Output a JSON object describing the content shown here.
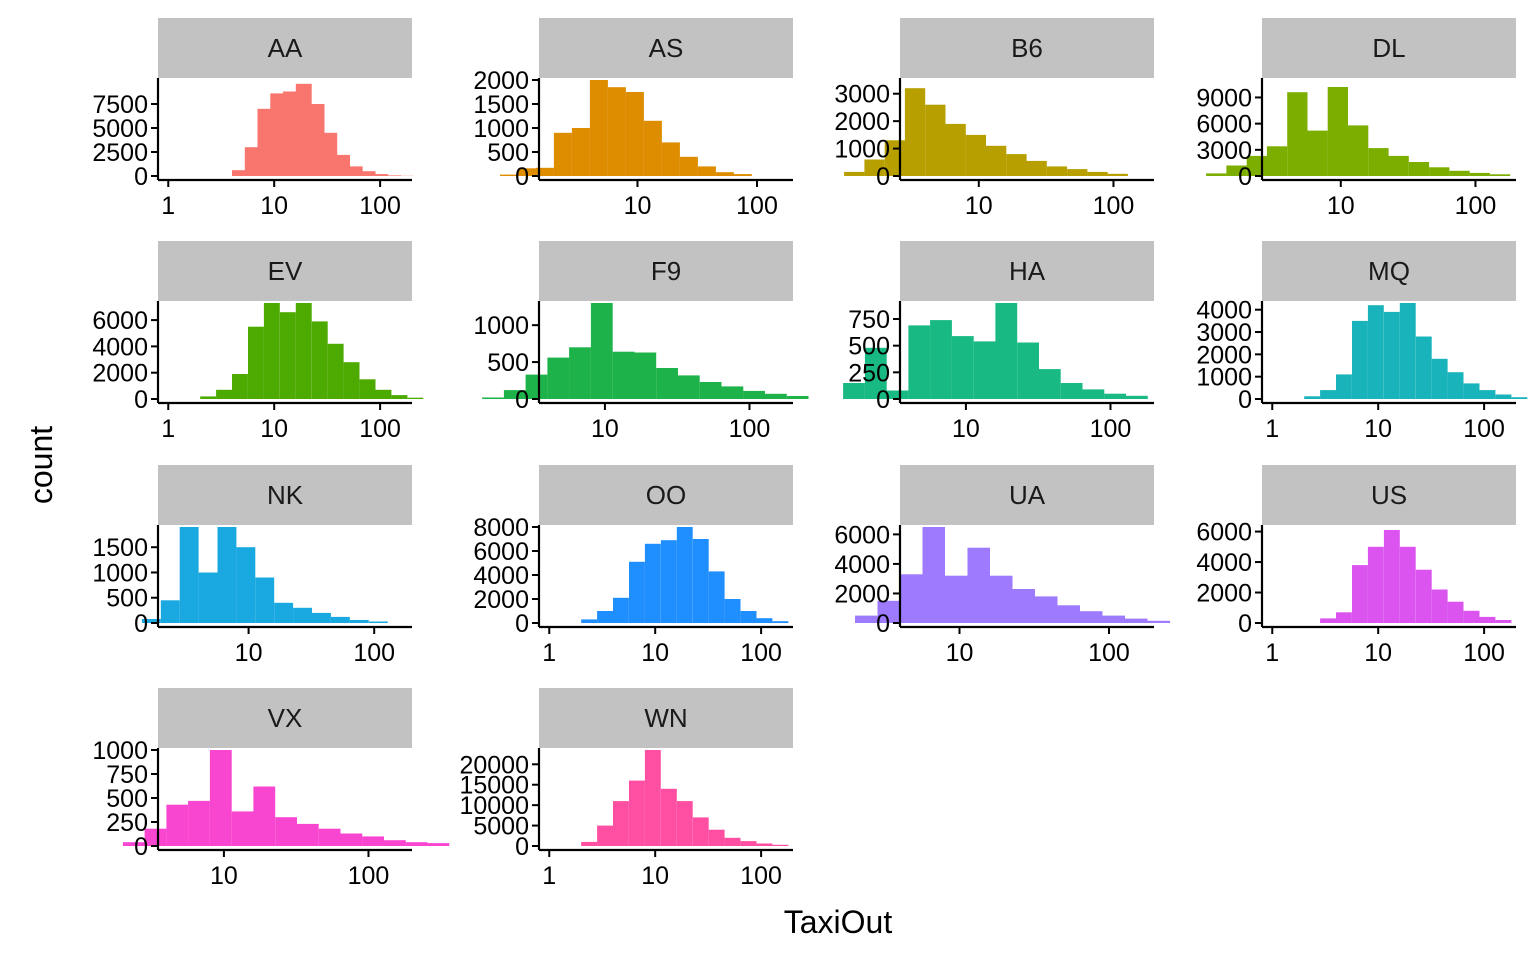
{
  "chart_data": {
    "type": "bar",
    "xlabel": "TaxiOut",
    "ylabel": "count",
    "x_scale": "log10",
    "legend": "none",
    "grid": false,
    "panels": [
      {
        "name": "AA",
        "color": "#F8766D",
        "x_ticks": [
          1,
          10,
          100
        ],
        "x_range": [
          0.8,
          200
        ],
        "y_ticks": [
          0,
          2500,
          5000,
          7500
        ],
        "y_max": 10000,
        "bins": [
          [
            9,
            0,
            150
          ],
          [
            8,
            150,
            600
          ],
          [
            8.8,
            600,
            3000
          ],
          [
            9.6,
            3000,
            7000
          ],
          [
            10.4,
            7000,
            8600
          ],
          [
            11.2,
            8600,
            8800
          ],
          [
            12,
            8800,
            9600
          ],
          [
            12.8,
            9600,
            7500
          ],
          [
            13.6,
            7500,
            4500
          ],
          [
            14.4,
            4500,
            2200
          ],
          [
            15.2,
            2200,
            1000
          ],
          [
            16,
            1000,
            500
          ],
          [
            16.8,
            500,
            200
          ],
          [
            17.6,
            200,
            60
          ],
          [
            18.4,
            60,
            20
          ]
        ]
      },
      {
        "name": "AS",
        "color": "#DE8C00",
        "x_ticks": [
          10,
          100
        ],
        "x_range": [
          1.5,
          200
        ],
        "y_ticks": [
          0,
          500,
          1000,
          1500,
          2000
        ],
        "y_max": 2000,
        "bins": [
          [
            3,
            0,
            30
          ],
          [
            4,
            30,
            160
          ],
          [
            5,
            160,
            170
          ],
          [
            6,
            170,
            900
          ],
          [
            7,
            900,
            1000
          ],
          [
            8,
            1000,
            2000
          ],
          [
            9,
            2000,
            1850
          ],
          [
            10,
            1850,
            1750
          ],
          [
            11,
            1750,
            1150
          ],
          [
            12,
            1150,
            700
          ],
          [
            13,
            700,
            400
          ],
          [
            14,
            400,
            200
          ],
          [
            15,
            200,
            80
          ],
          [
            16,
            80,
            40
          ]
        ]
      },
      {
        "name": "B6",
        "color": "#B79F00",
        "x_ticks": [
          10,
          100
        ],
        "x_range": [
          2.6,
          200
        ],
        "y_ticks": [
          0,
          1000,
          2000,
          3000
        ],
        "y_max": 3500,
        "bins": [
          [
            4,
            0,
            150
          ],
          [
            5,
            150,
            600
          ],
          [
            6,
            600,
            1300
          ],
          [
            7,
            1300,
            3200
          ],
          [
            8,
            3200,
            2600
          ],
          [
            9,
            2600,
            1900
          ],
          [
            10,
            1900,
            1500
          ],
          [
            11,
            1500,
            1100
          ],
          [
            12,
            1100,
            800
          ],
          [
            13,
            800,
            550
          ],
          [
            14,
            550,
            350
          ],
          [
            15,
            350,
            250
          ],
          [
            16,
            250,
            150
          ],
          [
            17,
            150,
            80
          ]
        ]
      },
      {
        "name": "DL",
        "color": "#7CAE00",
        "x_ticks": [
          10,
          100
        ],
        "x_range": [
          2.6,
          200
        ],
        "y_ticks": [
          0,
          3000,
          6000,
          9000
        ],
        "y_max": 11000,
        "bins": [
          [
            4,
            0,
            300
          ],
          [
            5,
            300,
            1200
          ],
          [
            6,
            1200,
            2300
          ],
          [
            7,
            2300,
            3400
          ],
          [
            8,
            3400,
            9600
          ],
          [
            9,
            9600,
            5200
          ],
          [
            10,
            5200,
            10200
          ],
          [
            11,
            10200,
            5800
          ],
          [
            12,
            5800,
            3200
          ],
          [
            13,
            3200,
            2300
          ],
          [
            14,
            2300,
            1600
          ],
          [
            15,
            1600,
            1000
          ],
          [
            16,
            1000,
            600
          ],
          [
            17,
            600,
            350
          ],
          [
            18,
            350,
            200
          ]
        ]
      },
      {
        "name": "EV",
        "color": "#4CAA00",
        "x_ticks": [
          1,
          10,
          100
        ],
        "x_range": [
          0.8,
          200
        ],
        "y_ticks": [
          0,
          2000,
          4000,
          6000
        ],
        "y_max": 7300,
        "bins": [
          [
            6,
            0,
            200
          ],
          [
            7,
            200,
            700
          ],
          [
            8,
            700,
            1900
          ],
          [
            9,
            1900,
            5500
          ],
          [
            10,
            5500,
            7300
          ],
          [
            11,
            7300,
            6600
          ],
          [
            12,
            6600,
            7300
          ],
          [
            13,
            7300,
            5900
          ],
          [
            14,
            5900,
            4200
          ],
          [
            15,
            4200,
            2800
          ],
          [
            16,
            2800,
            1500
          ],
          [
            17,
            1500,
            700
          ],
          [
            18,
            700,
            300
          ],
          [
            19,
            300,
            100
          ]
        ]
      },
      {
        "name": "F9",
        "color": "#1EB24A",
        "x_ticks": [
          10,
          100
        ],
        "x_range": [
          3.5,
          200
        ],
        "y_ticks": [
          0,
          500,
          1000
        ],
        "y_max": 1300,
        "bins": [
          [
            5,
            0,
            20
          ],
          [
            6,
            20,
            120
          ],
          [
            7,
            120,
            330
          ],
          [
            8,
            330,
            560
          ],
          [
            9,
            560,
            700
          ],
          [
            10,
            700,
            1300
          ],
          [
            11,
            1300,
            640
          ],
          [
            12,
            640,
            630
          ],
          [
            13,
            630,
            420
          ],
          [
            14,
            420,
            320
          ],
          [
            15,
            320,
            230
          ],
          [
            16,
            230,
            170
          ],
          [
            17,
            170,
            110
          ],
          [
            18,
            110,
            70
          ],
          [
            19,
            70,
            40
          ]
        ]
      },
      {
        "name": "HA",
        "color": "#18B983",
        "x_ticks": [
          10,
          100
        ],
        "x_range": [
          3.5,
          200
        ],
        "y_ticks": [
          0,
          250,
          500,
          750
        ],
        "y_max": 900,
        "bins": [
          [
            5,
            0,
            150
          ],
          [
            6,
            150,
            480
          ],
          [
            7,
            480,
            80
          ],
          [
            8,
            80,
            690
          ],
          [
            9,
            690,
            740
          ],
          [
            10,
            740,
            590
          ],
          [
            11,
            590,
            540
          ],
          [
            12,
            540,
            900
          ],
          [
            13,
            900,
            530
          ],
          [
            14,
            530,
            280
          ],
          [
            15,
            280,
            150
          ],
          [
            16,
            150,
            90
          ],
          [
            17,
            90,
            50
          ],
          [
            18,
            50,
            30
          ]
        ]
      },
      {
        "name": "MQ",
        "color": "#19B4BB",
        "x_ticks": [
          1,
          10,
          100
        ],
        "x_range": [
          0.8,
          200
        ],
        "y_ticks": [
          0,
          1000,
          2000,
          3000,
          4000
        ],
        "y_max": 4300,
        "bins": [
          [
            6,
            0,
            120
          ],
          [
            7,
            120,
            400
          ],
          [
            8,
            400,
            1100
          ],
          [
            9,
            1100,
            3500
          ],
          [
            10,
            3500,
            4200
          ],
          [
            11,
            4200,
            3900
          ],
          [
            12,
            3900,
            4300
          ],
          [
            13,
            4300,
            2800
          ],
          [
            14,
            2800,
            1800
          ],
          [
            15,
            1800,
            1200
          ],
          [
            16,
            1200,
            700
          ],
          [
            17,
            700,
            400
          ],
          [
            18,
            400,
            200
          ],
          [
            19,
            200,
            80
          ]
        ]
      },
      {
        "name": "NK",
        "color": "#19A8E0",
        "x_ticks": [
          10,
          100
        ],
        "x_range": [
          1.9,
          200
        ],
        "y_ticks": [
          0,
          500,
          1000,
          1500
        ],
        "y_max": 1900,
        "bins": [
          [
            5,
            0,
            80
          ],
          [
            6,
            80,
            450
          ],
          [
            7,
            450,
            1900
          ],
          [
            8,
            1900,
            1000
          ],
          [
            9,
            1000,
            1900
          ],
          [
            10,
            1900,
            1500
          ],
          [
            11,
            1500,
            900
          ],
          [
            12,
            900,
            400
          ],
          [
            13,
            400,
            300
          ],
          [
            14,
            300,
            200
          ],
          [
            15,
            200,
            120
          ],
          [
            16,
            120,
            60
          ],
          [
            17,
            60,
            30
          ]
        ]
      },
      {
        "name": "OO",
        "color": "#1F8EFF",
        "x_ticks": [
          1,
          10,
          100
        ],
        "x_range": [
          0.8,
          200
        ],
        "y_ticks": [
          0,
          2000,
          4000,
          6000,
          8000
        ],
        "y_max": 8000,
        "bins": [
          [
            6,
            0,
            300
          ],
          [
            7,
            300,
            1000
          ],
          [
            8,
            1000,
            2100
          ],
          [
            9,
            2100,
            5100
          ],
          [
            10,
            5100,
            6600
          ],
          [
            11,
            6600,
            6900
          ],
          [
            12,
            6900,
            8000
          ],
          [
            13,
            8000,
            7000
          ],
          [
            14,
            7000,
            4300
          ],
          [
            15,
            4300,
            2000
          ],
          [
            16,
            2000,
            1000
          ],
          [
            17,
            1000,
            400
          ],
          [
            18,
            400,
            150
          ]
        ]
      },
      {
        "name": "UA",
        "color": "#9E7AFF",
        "x_ticks": [
          10,
          100
        ],
        "x_range": [
          4,
          200
        ],
        "y_ticks": [
          0,
          2000,
          4000,
          6000
        ],
        "y_max": 6500,
        "bins": [
          [
            6,
            0,
            500
          ],
          [
            7,
            500,
            1500
          ],
          [
            8,
            1500,
            3300
          ],
          [
            9,
            3300,
            6500
          ],
          [
            10,
            6500,
            3200
          ],
          [
            11,
            3200,
            5100
          ],
          [
            12,
            5100,
            3200
          ],
          [
            13,
            3200,
            2300
          ],
          [
            14,
            2300,
            1800
          ],
          [
            15,
            1800,
            1200
          ],
          [
            16,
            1200,
            800
          ],
          [
            17,
            800,
            500
          ],
          [
            18,
            500,
            300
          ],
          [
            19,
            300,
            150
          ]
        ]
      },
      {
        "name": "US",
        "color": "#DB54F0",
        "x_ticks": [
          1,
          10,
          100
        ],
        "x_range": [
          0.8,
          200
        ],
        "y_ticks": [
          0,
          2000,
          4000,
          6000
        ],
        "y_max": 6300,
        "bins": [
          [
            7,
            0,
            300
          ],
          [
            8,
            300,
            700
          ],
          [
            9,
            700,
            3800
          ],
          [
            10,
            3800,
            5000
          ],
          [
            11,
            5000,
            6100
          ],
          [
            12,
            6100,
            5000
          ],
          [
            13,
            5000,
            3500
          ],
          [
            14,
            3500,
            2200
          ],
          [
            15,
            2200,
            1400
          ],
          [
            16,
            1400,
            800
          ],
          [
            17,
            800,
            400
          ],
          [
            18,
            400,
            200
          ]
        ]
      },
      {
        "name": "VX",
        "color": "#F946D1",
        "x_ticks": [
          10,
          100
        ],
        "x_range": [
          3.5,
          200
        ],
        "y_ticks": [
          0,
          250,
          500,
          750,
          1000
        ],
        "y_max": 1000,
        "bins": [
          [
            6,
            0,
            40
          ],
          [
            7,
            40,
            180
          ],
          [
            8,
            180,
            430
          ],
          [
            9,
            430,
            470
          ],
          [
            10,
            470,
            1000
          ],
          [
            11,
            1000,
            360
          ],
          [
            12,
            360,
            620
          ],
          [
            13,
            620,
            300
          ],
          [
            14,
            300,
            230
          ],
          [
            15,
            230,
            180
          ],
          [
            16,
            180,
            130
          ],
          [
            17,
            130,
            100
          ],
          [
            18,
            100,
            60
          ],
          [
            19,
            60,
            40
          ],
          [
            20,
            40,
            30
          ]
        ]
      },
      {
        "name": "WN",
        "color": "#FF4FA3",
        "x_ticks": [
          1,
          10,
          100
        ],
        "x_range": [
          0.8,
          200
        ],
        "y_ticks": [
          0,
          5000,
          10000,
          15000,
          20000
        ],
        "y_max": 23500,
        "bins": [
          [
            6,
            0,
            1000
          ],
          [
            7,
            1000,
            5000
          ],
          [
            8,
            5000,
            11000
          ],
          [
            9,
            11000,
            16000
          ],
          [
            10,
            16000,
            23500
          ],
          [
            11,
            23500,
            14000
          ],
          [
            12,
            14000,
            11000
          ],
          [
            13,
            11000,
            7000
          ],
          [
            14,
            7000,
            4000
          ],
          [
            15,
            4000,
            2000
          ],
          [
            16,
            2000,
            1200
          ],
          [
            17,
            1200,
            600
          ],
          [
            18,
            600,
            300
          ]
        ]
      }
    ]
  }
}
